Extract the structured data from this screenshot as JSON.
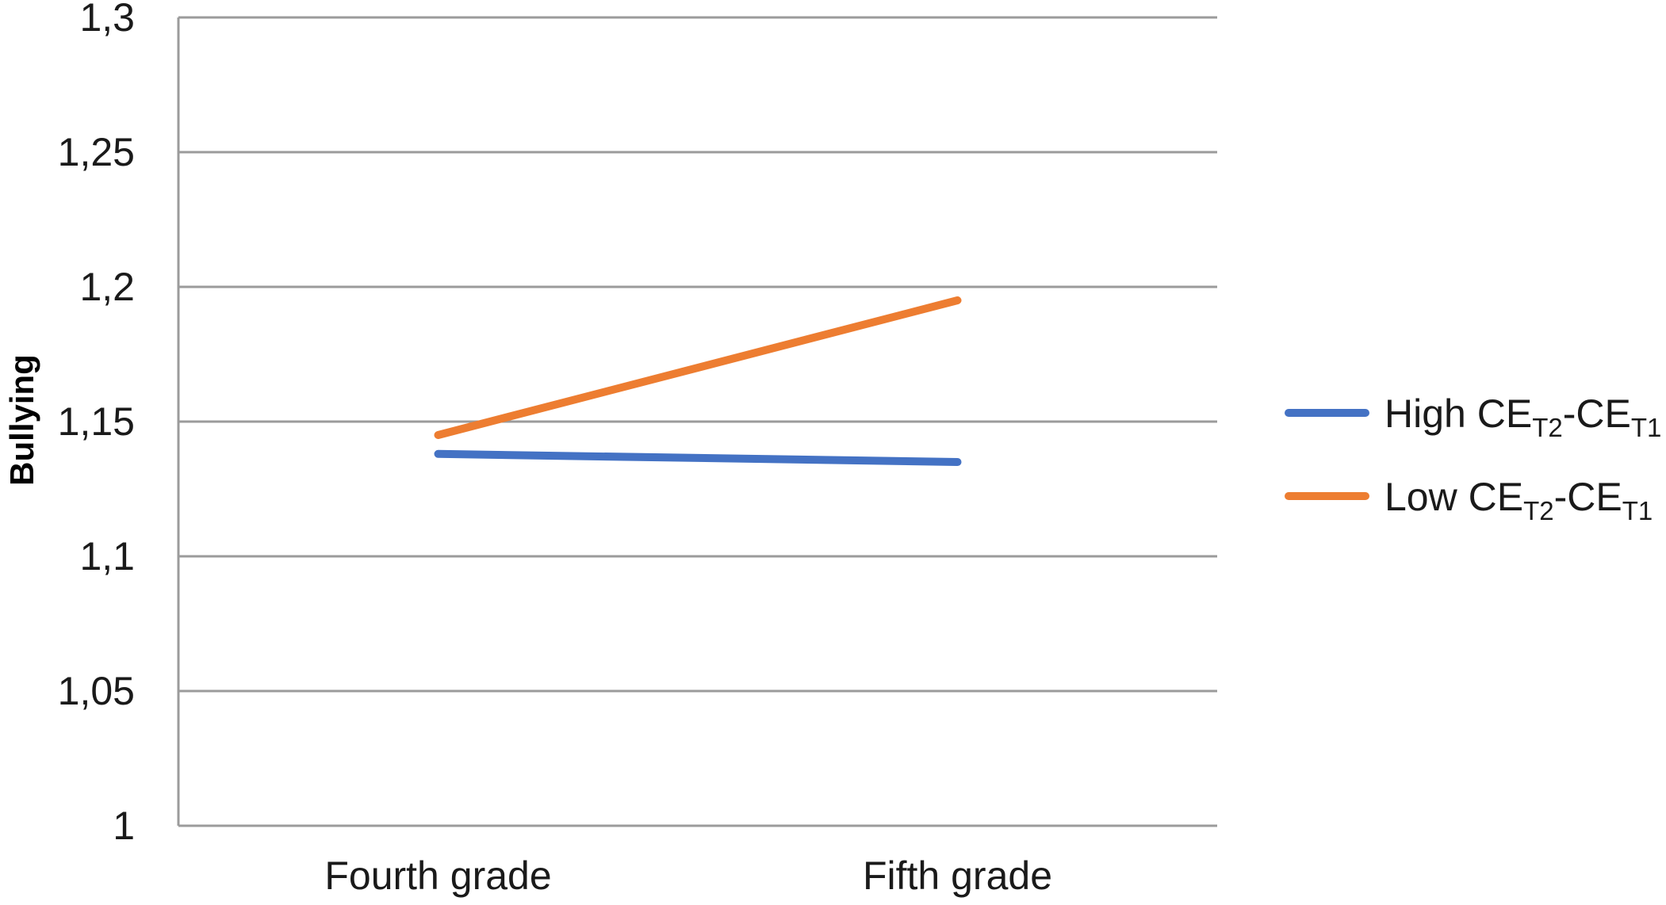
{
  "chart_data": {
    "type": "line",
    "categories": [
      "Fourth grade",
      "Fifth grade"
    ],
    "ylabel": "Bullying",
    "xlabel": "",
    "ylim": [
      1,
      1.3
    ],
    "yticks": [
      1,
      1.05,
      1.1,
      1.15,
      1.2,
      1.25,
      1.3
    ],
    "ytick_labels": [
      "1",
      "1,05",
      "1,1",
      "1,15",
      "1,2",
      "1,25",
      "1,3"
    ],
    "grid": true,
    "legend_position": "right",
    "series": [
      {
        "name": "High CE_T2-CE_T1",
        "legend": {
          "main1": "High CE",
          "sub1": "T2",
          "main2": "-CE",
          "sub2": "T1"
        },
        "color": "#4472C4",
        "values": [
          1.138,
          1.135
        ]
      },
      {
        "name": "Low CE_T2-CE_T1",
        "legend": {
          "main1": "Low CE",
          "sub1": "T2",
          "main2": "-CE",
          "sub2": "T1"
        },
        "color": "#ED7D31",
        "values": [
          1.145,
          1.195
        ]
      }
    ]
  }
}
